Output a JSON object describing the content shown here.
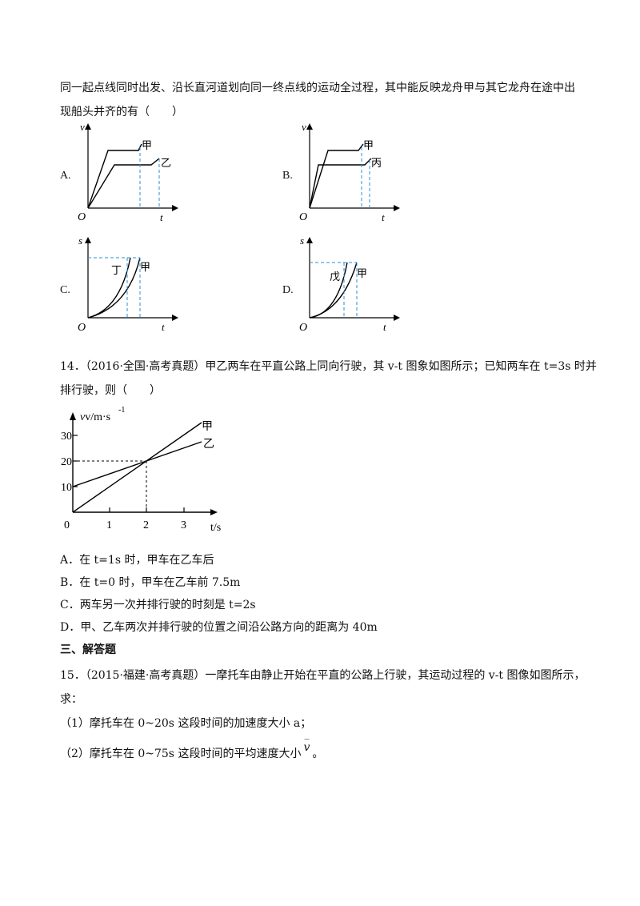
{
  "q13": {
    "line1": "同一起点线同时出发、沿长直河道划向同一终点线的运动全过程，其中能反映龙舟甲与其它龙舟在途中出",
    "line2": "现船头并齐的有（　　）",
    "options": [
      {
        "letter": "A.",
        "yaxis": "v",
        "xaxis": "t",
        "origin": "O",
        "labels": [
          "甲",
          "乙"
        ]
      },
      {
        "letter": "B.",
        "yaxis": "v",
        "xaxis": "t",
        "origin": "O",
        "labels": [
          "甲",
          "丙"
        ]
      },
      {
        "letter": "C.",
        "yaxis": "s",
        "xaxis": "t",
        "origin": "O",
        "labels": [
          "丁",
          "甲"
        ]
      },
      {
        "letter": "D.",
        "yaxis": "s",
        "xaxis": "t",
        "origin": "O",
        "labels": [
          "戊",
          "甲"
        ]
      }
    ]
  },
  "q14": {
    "line1": "14．（2016·全国·高考真题）甲乙两车在平直公路上同向行驶，其 v-t 图象如图所示；已知两车在 t=3s 时并",
    "line2": "排行驶，则（　　）",
    "chart": {
      "ylabel": "v/m·s",
      "ylabel_sup": "-1",
      "xlabel": "t/s",
      "origin": "0",
      "xticks": [
        "1",
        "2",
        "3"
      ],
      "yticks": [
        "10",
        "20",
        "30"
      ],
      "series_labels": [
        "甲",
        "乙"
      ]
    },
    "options": [
      "A．在 t=1s 时，甲车在乙车后",
      "B．在 t=0 时，甲车在乙车前 7.5m",
      "C．两车另一次并排行驶的时刻是 t=2s",
      "D．甲、乙车两次并排行驶的位置之间沿公路方向的距离为 40m"
    ]
  },
  "section3": {
    "title": "三、解答题"
  },
  "q15": {
    "line1": "15．（2015·福建·高考真题）一摩托车由静止开始在平直的公路上行驶，其运动过程的 v-t 图像如图所示，",
    "line2": "求：",
    "part1": "（1）摩托车在 0~20s 这段时间的加速度大小 a；",
    "part2_prefix": "（2）摩托车在 0~75s 这段时间的平均速度大小",
    "part2_symbol": "v",
    "part2_suffix": "。"
  }
}
